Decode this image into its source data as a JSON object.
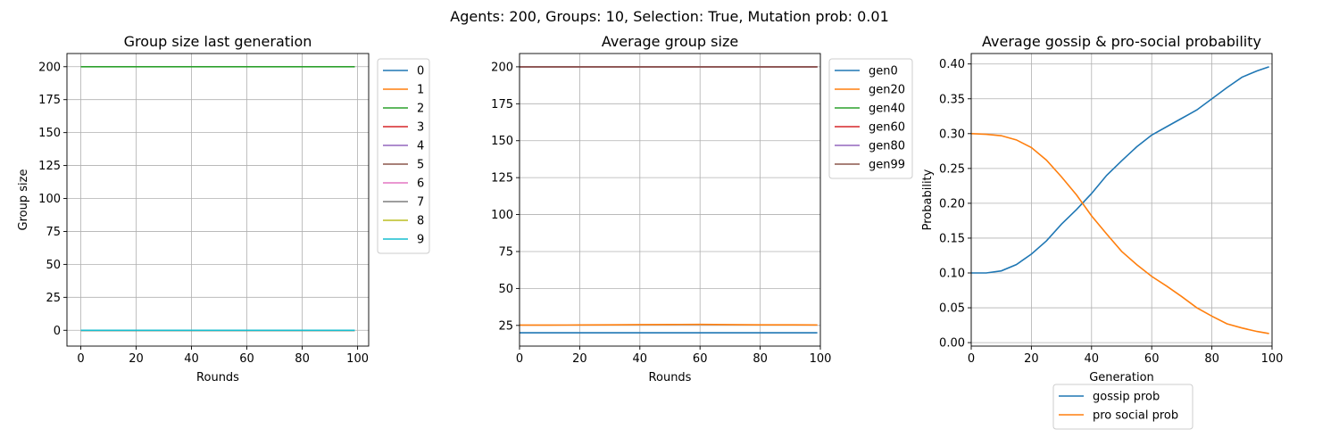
{
  "suptitle": "Agents: 200, Groups: 10, Selection: True, Mutation prob: 0.01",
  "chart_data": [
    {
      "type": "line",
      "title": "Group size last generation",
      "xlabel": "Rounds",
      "ylabel": "Group size",
      "xlim": [
        -5,
        104
      ],
      "ylim": [
        -12,
        210
      ],
      "xticks": [
        0,
        20,
        40,
        60,
        80,
        100
      ],
      "yticks": [
        0,
        25,
        50,
        75,
        100,
        125,
        150,
        175,
        200
      ],
      "grid": true,
      "legend_position": "outside right",
      "x": [
        0,
        99
      ],
      "series": [
        {
          "name": "0",
          "color": "#1f77b4",
          "values": [
            0,
            0
          ]
        },
        {
          "name": "1",
          "color": "#ff7f0e",
          "values": [
            0,
            0
          ]
        },
        {
          "name": "2",
          "color": "#2ca02c",
          "values": [
            200,
            200
          ]
        },
        {
          "name": "3",
          "color": "#d62728",
          "values": [
            0,
            0
          ]
        },
        {
          "name": "4",
          "color": "#9467bd",
          "values": [
            0,
            0
          ]
        },
        {
          "name": "5",
          "color": "#8c564b",
          "values": [
            0,
            0
          ]
        },
        {
          "name": "6",
          "color": "#e377c2",
          "values": [
            0,
            0
          ]
        },
        {
          "name": "7",
          "color": "#7f7f7f",
          "values": [
            0,
            0
          ]
        },
        {
          "name": "8",
          "color": "#bcbd22",
          "values": [
            0,
            0
          ]
        },
        {
          "name": "9",
          "color": "#17becf",
          "values": [
            0,
            0
          ]
        }
      ]
    },
    {
      "type": "line",
      "title": "Average group size",
      "xlabel": "Rounds",
      "ylabel": "",
      "xlim": [
        0,
        100
      ],
      "ylim": [
        11,
        209
      ],
      "xticks": [
        0,
        20,
        40,
        60,
        80,
        100
      ],
      "yticks": [
        25,
        50,
        75,
        100,
        125,
        150,
        175,
        200
      ],
      "grid": true,
      "legend_position": "outside right",
      "x": [
        0,
        10,
        20,
        30,
        40,
        50,
        60,
        70,
        80,
        90,
        99
      ],
      "series": [
        {
          "name": "gen0",
          "color": "#1f77b4",
          "values": [
            20,
            20,
            20,
            20,
            20,
            20,
            20,
            20,
            20,
            20,
            20
          ]
        },
        {
          "name": "gen20",
          "color": "#ff7f0e",
          "values": [
            25.2,
            25.2,
            25.3,
            25.4,
            25.5,
            25.6,
            25.7,
            25.5,
            25.4,
            25.4,
            25.3
          ]
        },
        {
          "name": "gen40",
          "color": "#2ca02c",
          "values": [
            200,
            200,
            200,
            200,
            200,
            200,
            200,
            200,
            200,
            200,
            200
          ]
        },
        {
          "name": "gen60",
          "color": "#d62728",
          "values": [
            200,
            200,
            200,
            200,
            200,
            200,
            200,
            200,
            200,
            200,
            200
          ]
        },
        {
          "name": "gen80",
          "color": "#9467bd",
          "values": [
            200,
            200,
            200,
            200,
            200,
            200,
            200,
            200,
            200,
            200,
            200
          ]
        },
        {
          "name": "gen99",
          "color": "#8c564b",
          "values": [
            200,
            200,
            200,
            200,
            200,
            200,
            200,
            200,
            200,
            200,
            200
          ]
        }
      ]
    },
    {
      "type": "line",
      "title": "Average gossip & pro-social probability",
      "xlabel": "Generation",
      "ylabel": "Probability",
      "xlim": [
        0,
        100
      ],
      "ylim": [
        -0.005,
        0.415
      ],
      "xticks": [
        0,
        20,
        40,
        60,
        80,
        100
      ],
      "yticks": [
        0.0,
        0.05,
        0.1,
        0.15,
        0.2,
        0.25,
        0.3,
        0.35,
        0.4
      ],
      "ytick_labels": [
        "0.00",
        "0.05",
        "0.10",
        "0.15",
        "0.20",
        "0.25",
        "0.30",
        "0.35",
        "0.40"
      ],
      "grid": true,
      "legend_position": "below",
      "x": [
        0,
        5,
        10,
        15,
        20,
        25,
        30,
        35,
        40,
        45,
        50,
        55,
        60,
        65,
        70,
        75,
        80,
        85,
        90,
        95,
        99
      ],
      "series": [
        {
          "name": "gossip prob",
          "color": "#1f77b4",
          "values": [
            0.1,
            0.1,
            0.103,
            0.112,
            0.127,
            0.146,
            0.17,
            0.191,
            0.214,
            0.24,
            0.261,
            0.281,
            0.298,
            0.31,
            0.322,
            0.334,
            0.35,
            0.366,
            0.381,
            0.39,
            0.396
          ]
        },
        {
          "name": "pro social prob",
          "color": "#ff7f0e",
          "values": [
            0.3,
            0.299,
            0.297,
            0.291,
            0.28,
            0.262,
            0.238,
            0.212,
            0.182,
            0.156,
            0.131,
            0.112,
            0.095,
            0.081,
            0.066,
            0.05,
            0.038,
            0.027,
            0.021,
            0.016,
            0.013
          ]
        }
      ]
    }
  ]
}
